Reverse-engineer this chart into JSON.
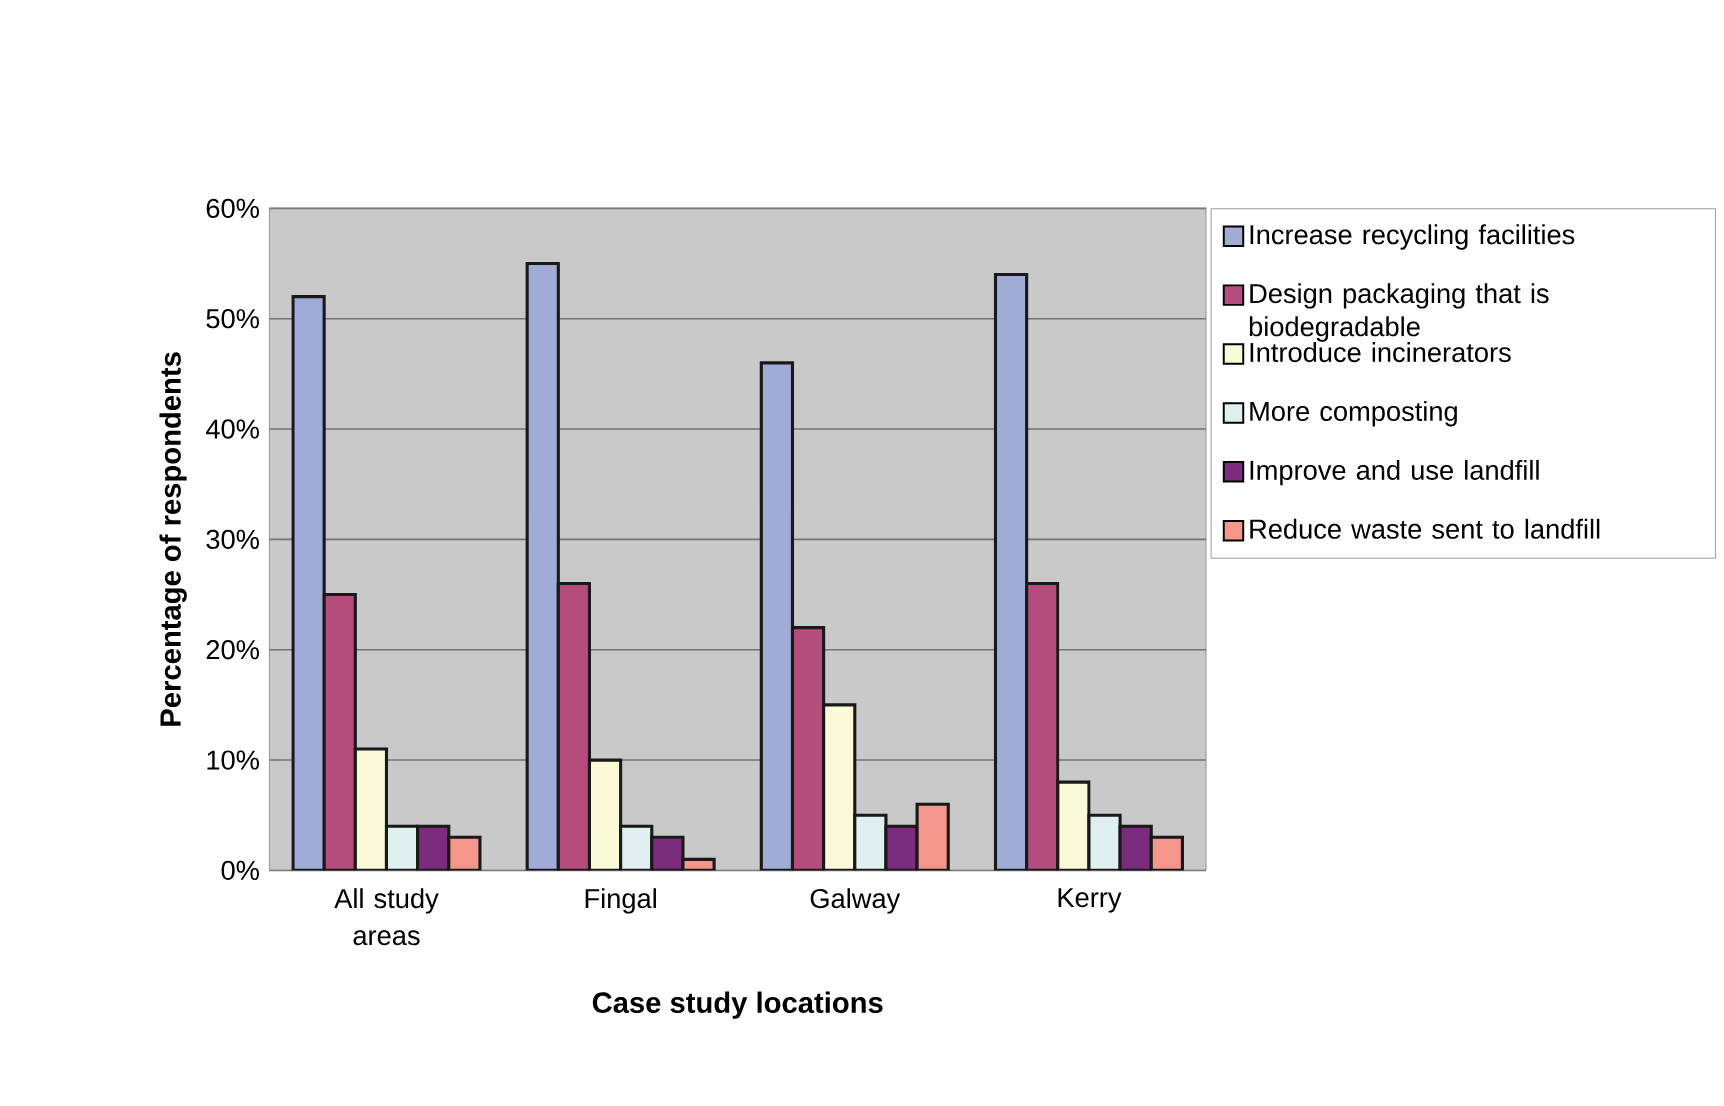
{
  "chart_data": {
    "type": "bar",
    "xlabel": "Case study locations",
    "ylabel": "Percentage of respondents",
    "categories": [
      "All study areas",
      "Fingal",
      "Galway",
      "Kerry"
    ],
    "series": [
      {
        "name": "Increase recycling facilities",
        "color": "#a0acd6",
        "values": [
          52,
          55,
          46,
          54
        ]
      },
      {
        "name": "Design packaging that is biodegradable",
        "color": "#b44c7c",
        "values": [
          25,
          26,
          22,
          26
        ]
      },
      {
        "name": "Introduce incinerators",
        "color": "#fafad8",
        "values": [
          11,
          10,
          15,
          8
        ]
      },
      {
        "name": "More composting",
        "color": "#e0f0f0",
        "values": [
          4,
          4,
          5,
          5
        ]
      },
      {
        "name": "Improve and use landfill",
        "color": "#7c2c7c",
        "values": [
          4,
          3,
          4,
          4
        ]
      },
      {
        "name": "Reduce waste sent to landfill",
        "color": "#f4968c",
        "values": [
          3,
          1,
          6,
          3
        ]
      }
    ],
    "ylim": [
      0,
      60
    ],
    "yticks": [
      {
        "value": 0,
        "label": "0%"
      },
      {
        "value": 10,
        "label": "10%"
      },
      {
        "value": 20,
        "label": "20%"
      },
      {
        "value": 30,
        "label": "30%"
      },
      {
        "value": 40,
        "label": "40%"
      },
      {
        "value": 50,
        "label": "50%"
      },
      {
        "value": 60,
        "label": "60%"
      }
    ],
    "grid": "y",
    "legend": "right"
  }
}
